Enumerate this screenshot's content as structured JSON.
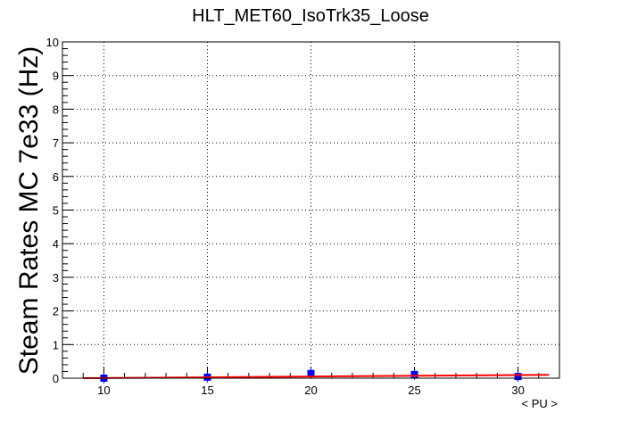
{
  "chart_data": {
    "type": "scatter",
    "title": "HLT_MET60_IsoTrk35_Loose",
    "xlabel": "< PU >",
    "ylabel": "Steam Rates MC 7e33 (Hz)",
    "xlim": [
      8.0,
      32.0
    ],
    "ylim": [
      0,
      10
    ],
    "xticks": [
      10,
      15,
      20,
      25,
      30
    ],
    "yticks": [
      0,
      1,
      2,
      3,
      4,
      5,
      6,
      7,
      8,
      9,
      10
    ],
    "grid": true,
    "series": [
      {
        "kind": "points",
        "color": "#0000ff",
        "x": [
          10,
          15,
          20,
          25,
          30
        ],
        "y": [
          0.0,
          0.03,
          0.14,
          0.11,
          0.05
        ]
      },
      {
        "kind": "fit-line",
        "color": "#ff0000",
        "x": [
          9.0,
          31.5
        ],
        "y": [
          0.0,
          0.1
        ]
      }
    ]
  }
}
